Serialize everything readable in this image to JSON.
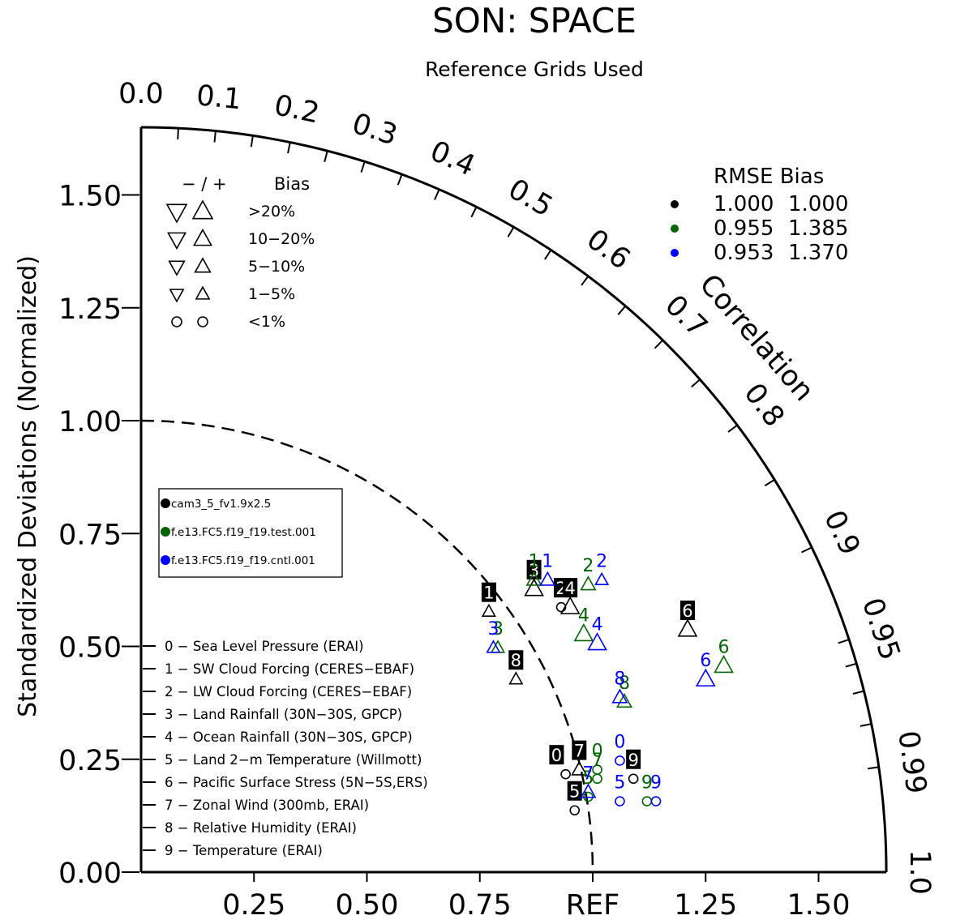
{
  "title": "SON: SPACE",
  "subtitle": "Reference Grids Used",
  "chart_data": {
    "type": "scatter",
    "diagram": "taylor",
    "ylabel": "Standardized Deviations (Normalized)",
    "xlabel": "",
    "arc_label": "Correlation",
    "ylim": [
      0,
      1.65
    ],
    "xlim": [
      0,
      1.65
    ],
    "y_ticks": [
      "0.00",
      "0.25",
      "0.50",
      "0.75",
      "1.00",
      "1.25",
      "1.50"
    ],
    "x_ticks": [
      "0.25",
      "0.50",
      "0.75",
      "REF",
      "1.25",
      "1.50"
    ],
    "correlation_ticks": [
      "0.0",
      "0.1",
      "0.2",
      "0.3",
      "0.4",
      "0.5",
      "0.6",
      "0.7",
      "0.8",
      "0.9",
      "0.95",
      "0.99",
      "1.0"
    ],
    "reference_arc": 1.0,
    "bias_legend": {
      "header_sign": "− / +",
      "header_bias": "Bias",
      "rows": [
        {
          "label": ">20%",
          "size": 1.0
        },
        {
          "label": "10−20%",
          "size": 0.8
        },
        {
          "label": "5−10%",
          "size": 0.62
        },
        {
          "label": "1−5%",
          "size": 0.45
        },
        {
          "label": "<1%",
          "size": 0.0
        }
      ]
    },
    "stats_legend": {
      "header": "RMSE  Bias",
      "rows": [
        {
          "color": "#000000",
          "rmse": "1.000",
          "bias": "1.000"
        },
        {
          "color": "#006400",
          "rmse": "0.955",
          "bias": "1.385"
        },
        {
          "color": "#0000ff",
          "rmse": "0.953",
          "bias": "1.370"
        }
      ]
    },
    "case_legend": [
      {
        "name": "cam3_5_fv1.9x2.5",
        "color": "#000000"
      },
      {
        "name": "f.e13.FC5.f19_f19.test.001",
        "color": "#006400"
      },
      {
        "name": "f.e13.FC5.f19_f19.cntl.001",
        "color": "#0000ff"
      }
    ],
    "variables": [
      "0 − Sea Level Pressure (ERAI)",
      "1 − SW Cloud Forcing (CERES−EBAF)",
      "2 − LW Cloud Forcing (CERES−EBAF)",
      "3 − Land Rainfall (30N−30S, GPCP)",
      "4 − Ocean Rainfall (30N−30S, GPCP)",
      "5 − Land 2−m Temperature (Willmott)",
      "6 − Pacific Surface Stress (5N−5S,ERS)",
      "7 − Zonal Wind (300mb, ERAI)",
      "8 − Relative Humidity (ERAI)",
      "9 − Temperature (ERAI)"
    ],
    "series": [
      {
        "name": "cam3_5_fv1.9x2.5",
        "color": "#000000",
        "label_style": "boxed",
        "points": [
          {
            "var": "0",
            "x": 0.94,
            "y": 0.26,
            "label_dx": -0.02,
            "label_dy": 0.0,
            "marker": "circle",
            "bias_size": 0
          },
          {
            "var": "1",
            "x": 0.77,
            "y": 0.62,
            "label_dx": 0.0,
            "label_dy": 0.0,
            "marker": "up",
            "bias_size": 0.45
          },
          {
            "var": "2",
            "x": 0.93,
            "y": 0.63,
            "label_dx": 0.0,
            "label_dy": 0.0,
            "marker": "circle",
            "bias_size": 0
          },
          {
            "var": "3",
            "x": 0.87,
            "y": 0.67,
            "label_dx": 0.0,
            "label_dy": 0.0,
            "marker": "up",
            "bias_size": 1.0
          },
          {
            "var": "4",
            "x": 0.95,
            "y": 0.63,
            "label_dx": 0.0,
            "label_dy": 0.0,
            "marker": "up",
            "bias_size": 1.0
          },
          {
            "var": "5",
            "x": 0.96,
            "y": 0.18,
            "label_dx": 0.0,
            "label_dy": 0.0,
            "marker": "circle",
            "bias_size": 0
          },
          {
            "var": "6",
            "x": 1.21,
            "y": 0.58,
            "label_dx": 0.0,
            "label_dy": 0.0,
            "marker": "up",
            "bias_size": 1.0
          },
          {
            "var": "7",
            "x": 0.97,
            "y": 0.27,
            "label_dx": 0.0,
            "label_dy": 0.0,
            "marker": "up",
            "bias_size": 0.62
          },
          {
            "var": "8",
            "x": 0.83,
            "y": 0.47,
            "label_dx": 0.0,
            "label_dy": 0.0,
            "marker": "up",
            "bias_size": 0.45
          },
          {
            "var": "9",
            "x": 1.09,
            "y": 0.25,
            "label_dx": 0.0,
            "label_dy": 0.0,
            "marker": "circle",
            "bias_size": 0
          }
        ]
      },
      {
        "name": "f.e13.FC5.f19_f19.test.001",
        "color": "#006400",
        "label_style": "plain",
        "points": [
          {
            "var": "0",
            "x": 1.01,
            "y": 0.27,
            "label_dx": 0.0,
            "label_dy": 0.0,
            "marker": "circle",
            "bias_size": 0
          },
          {
            "var": "1",
            "x": 0.87,
            "y": 0.69,
            "label_dx": 0.0,
            "label_dy": 0.0,
            "marker": "up",
            "bias_size": 0.62
          },
          {
            "var": "2",
            "x": 0.99,
            "y": 0.68,
            "label_dx": 0.0,
            "label_dy": 0.0,
            "marker": "up",
            "bias_size": 0.62
          },
          {
            "var": "3",
            "x": 0.79,
            "y": 0.54,
            "label_dx": 0.0,
            "label_dy": 0.0,
            "marker": "up",
            "bias_size": 0.45
          },
          {
            "var": "4",
            "x": 0.98,
            "y": 0.57,
            "label_dx": 0.0,
            "label_dy": 0.0,
            "marker": "up",
            "bias_size": 1.0
          },
          {
            "var": "5",
            "x": 0.99,
            "y": 0.21,
            "label_dx": 0.0,
            "label_dy": 0.0,
            "marker": "circle",
            "bias_size": 0
          },
          {
            "var": "6",
            "x": 1.29,
            "y": 0.5,
            "label_dx": 0.0,
            "label_dy": 0.0,
            "marker": "up",
            "bias_size": 1.0
          },
          {
            "var": "7",
            "x": 1.01,
            "y": 0.25,
            "label_dx": 0.0,
            "label_dy": 0.0,
            "marker": "circle",
            "bias_size": 0
          },
          {
            "var": "8",
            "x": 1.07,
            "y": 0.42,
            "label_dx": 0.0,
            "label_dy": 0.0,
            "marker": "up",
            "bias_size": 0.62
          },
          {
            "var": "9",
            "x": 1.12,
            "y": 0.2,
            "label_dx": 0.0,
            "label_dy": 0.0,
            "marker": "circle",
            "bias_size": 0
          }
        ]
      },
      {
        "name": "f.e13.FC5.f19_f19.cntl.001",
        "color": "#0000ff",
        "label_style": "plain",
        "points": [
          {
            "var": "0",
            "x": 1.06,
            "y": 0.29,
            "label_dx": 0.0,
            "label_dy": 0.0,
            "marker": "circle",
            "bias_size": 0
          },
          {
            "var": "1",
            "x": 0.9,
            "y": 0.69,
            "label_dx": 0.0,
            "label_dy": 0.0,
            "marker": "up",
            "bias_size": 0.62
          },
          {
            "var": "2",
            "x": 1.02,
            "y": 0.69,
            "label_dx": 0.0,
            "label_dy": 0.0,
            "marker": "up",
            "bias_size": 0.45
          },
          {
            "var": "3",
            "x": 0.78,
            "y": 0.54,
            "label_dx": 0.0,
            "label_dy": 0.0,
            "marker": "up",
            "bias_size": 0.45
          },
          {
            "var": "4",
            "x": 1.01,
            "y": 0.55,
            "label_dx": 0.0,
            "label_dy": 0.0,
            "marker": "up",
            "bias_size": 1.0
          },
          {
            "var": "5",
            "x": 1.06,
            "y": 0.2,
            "label_dx": 0.0,
            "label_dy": 0.0,
            "marker": "circle",
            "bias_size": 0
          },
          {
            "var": "6",
            "x": 1.25,
            "y": 0.47,
            "label_dx": 0.0,
            "label_dy": 0.0,
            "marker": "up",
            "bias_size": 1.0
          },
          {
            "var": "7",
            "x": 0.99,
            "y": 0.22,
            "label_dx": 0.0,
            "label_dy": 0.0,
            "marker": "up",
            "bias_size": 0.62
          },
          {
            "var": "8",
            "x": 1.06,
            "y": 0.43,
            "label_dx": 0.0,
            "label_dy": 0.0,
            "marker": "up",
            "bias_size": 0.62
          },
          {
            "var": "9",
            "x": 1.14,
            "y": 0.2,
            "label_dx": 0.0,
            "label_dy": 0.0,
            "marker": "circle",
            "bias_size": 0
          }
        ]
      }
    ]
  }
}
